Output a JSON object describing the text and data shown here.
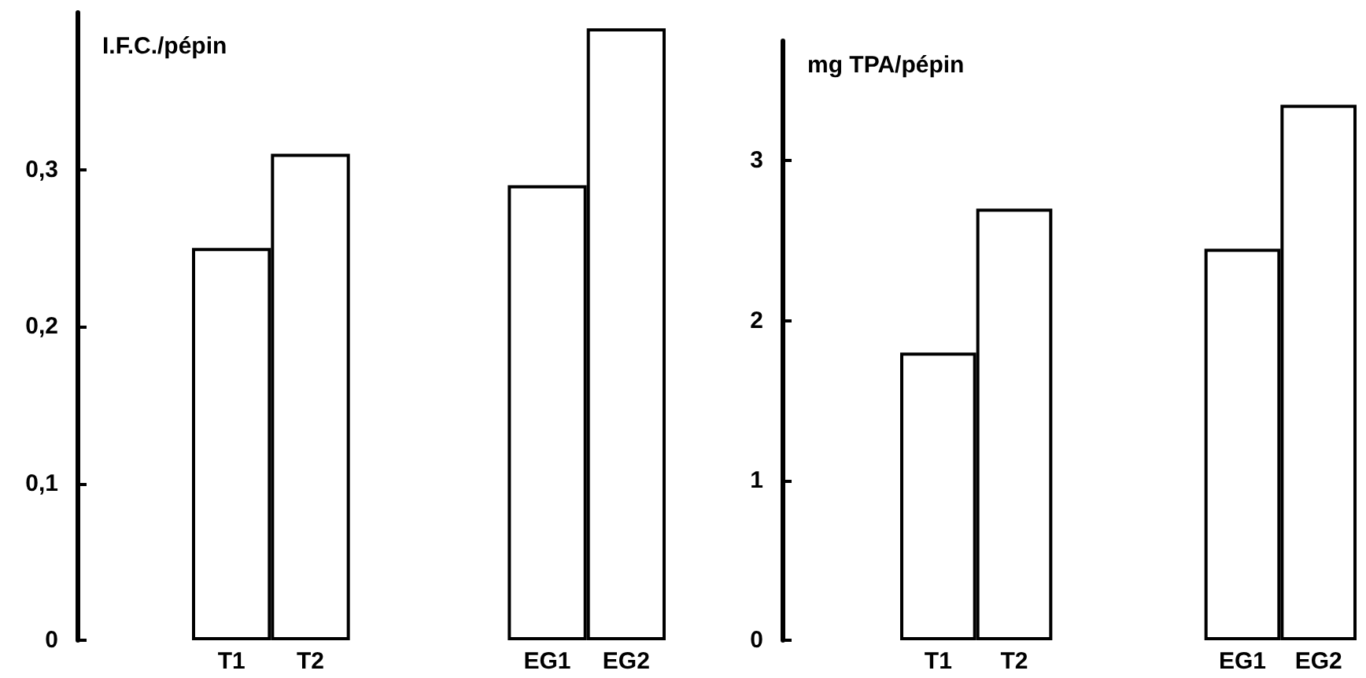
{
  "chart_data": [
    {
      "type": "bar",
      "ylabel": "I.F.C./pépin",
      "categories": [
        "T1",
        "T2",
        null,
        null,
        "EG1",
        "EG2"
      ],
      "values": [
        0.25,
        0.31,
        null,
        null,
        0.29,
        0.39
      ],
      "color": "#ffffff",
      "ylim": [
        0,
        0.4
      ],
      "yticks": [
        {
          "value": 0,
          "label": "0"
        },
        {
          "value": 0.1,
          "label": "0,1"
        },
        {
          "value": 0.2,
          "label": "0,2"
        },
        {
          "value": 0.3,
          "label": "0,3"
        }
      ],
      "grid": false
    },
    {
      "type": "bar",
      "ylabel": "mg TPA/pépin",
      "categories": [
        "T1",
        "T2",
        null,
        null,
        "EG1",
        "EG2"
      ],
      "values": [
        1.8,
        2.7,
        null,
        null,
        2.45,
        3.35
      ],
      "color": "#ffffff",
      "ylim": [
        0,
        3.75
      ],
      "yticks": [
        0,
        1,
        2,
        3
      ],
      "grid": false
    }
  ]
}
